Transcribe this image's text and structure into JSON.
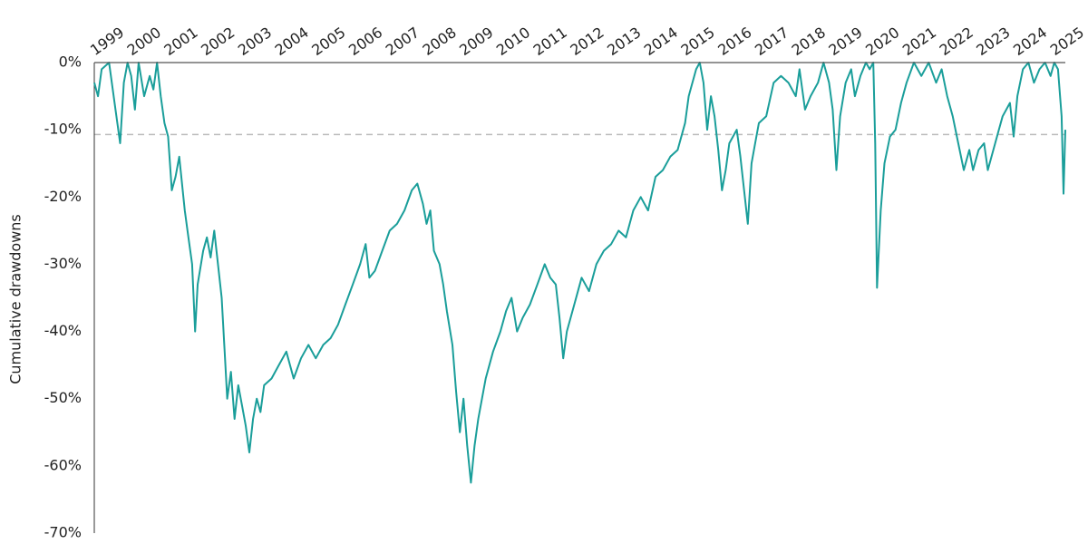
{
  "chart_data": {
    "type": "line",
    "ylabel": "Cumulative drawdowns",
    "xlim": [
      1999,
      2025.3
    ],
    "xticks": [
      1999,
      2000,
      2001,
      2002,
      2003,
      2004,
      2005,
      2006,
      2007,
      2008,
      2009,
      2010,
      2011,
      2012,
      2013,
      2014,
      2015,
      2016,
      2017,
      2018,
      2019,
      2020,
      2021,
      2022,
      2023,
      2024,
      2025
    ],
    "ylim": [
      -70,
      0
    ],
    "yticks": [
      {
        "value": 0,
        "label": "0%"
      },
      {
        "value": -10,
        "label": "-10%"
      },
      {
        "value": -20,
        "label": "-20%"
      },
      {
        "value": -30,
        "label": "-30%"
      },
      {
        "value": -40,
        "label": "-40%"
      },
      {
        "value": -50,
        "label": "-50%"
      },
      {
        "value": -60,
        "label": "-60%"
      },
      {
        "value": -70,
        "label": "-70%"
      }
    ],
    "reference_line": -10.7,
    "series": [
      {
        "color": "#1a9e9a",
        "x": [
          1999.0,
          1999.1,
          1999.2,
          1999.4,
          1999.6,
          1999.7,
          1999.8,
          1999.9,
          2000.0,
          2000.1,
          2000.2,
          2000.35,
          2000.5,
          2000.6,
          2000.7,
          2000.8,
          2000.9,
          2001.0,
          2001.1,
          2001.2,
          2001.3,
          2001.45,
          2001.55,
          2001.65,
          2001.73,
          2001.8,
          2001.95,
          2002.05,
          2002.15,
          2002.25,
          2002.35,
          2002.45,
          2002.55,
          2002.6,
          2002.7,
          2002.8,
          2002.9,
          2003.0,
          2003.1,
          2003.2,
          2003.3,
          2003.4,
          2003.5,
          2003.6,
          2003.8,
          2004.0,
          2004.2,
          2004.4,
          2004.6,
          2004.8,
          2005.0,
          2005.2,
          2005.4,
          2005.6,
          2005.8,
          2006.0,
          2006.2,
          2006.35,
          2006.45,
          2006.6,
          2006.8,
          2007.0,
          2007.2,
          2007.4,
          2007.6,
          2007.75,
          2007.9,
          2008.0,
          2008.1,
          2008.2,
          2008.35,
          2008.45,
          2008.55,
          2008.7,
          2008.8,
          2008.9,
          2009.0,
          2009.1,
          2009.2,
          2009.3,
          2009.4,
          2009.5,
          2009.6,
          2009.8,
          2010.0,
          2010.15,
          2010.3,
          2010.45,
          2010.6,
          2010.8,
          2011.0,
          2011.2,
          2011.35,
          2011.5,
          2011.6,
          2011.7,
          2011.8,
          2012.0,
          2012.2,
          2012.4,
          2012.6,
          2012.8,
          2013.0,
          2013.2,
          2013.4,
          2013.6,
          2013.8,
          2014.0,
          2014.2,
          2014.4,
          2014.6,
          2014.8,
          2015.0,
          2015.1,
          2015.3,
          2015.4,
          2015.5,
          2015.6,
          2015.7,
          2015.8,
          2015.9,
          2016.0,
          2016.1,
          2016.2,
          2016.4,
          2016.5,
          2016.6,
          2016.7,
          2016.8,
          2016.9,
          2017.0,
          2017.2,
          2017.4,
          2017.6,
          2017.8,
          2018.0,
          2018.1,
          2018.25,
          2018.4,
          2018.6,
          2018.75,
          2018.9,
          2019.0,
          2019.1,
          2019.2,
          2019.35,
          2019.5,
          2019.6,
          2019.75,
          2019.9,
          2020.0,
          2020.1,
          2020.15,
          2020.2,
          2020.3,
          2020.4,
          2020.55,
          2020.7,
          2020.85,
          2021.0,
          2021.2,
          2021.4,
          2021.6,
          2021.8,
          2021.95,
          2022.1,
          2022.25,
          2022.4,
          2022.55,
          2022.7,
          2022.8,
          2022.95,
          2023.1,
          2023.2,
          2023.35,
          2023.5,
          2023.6,
          2023.8,
          2023.9,
          2024.0,
          2024.15,
          2024.3,
          2024.45,
          2024.6,
          2024.75,
          2024.9,
          2025.0,
          2025.1,
          2025.2,
          2025.25,
          2025.3
        ],
        "values": [
          -3,
          -5,
          -1,
          0,
          -8,
          -12,
          -3,
          0,
          -2,
          -7,
          0,
          -5,
          -2,
          -4,
          0,
          -5,
          -9,
          -11,
          -19,
          -17,
          -14,
          -22,
          -26,
          -30,
          -40,
          -33,
          -28,
          -26,
          -29,
          -25,
          -30,
          -35,
          -45,
          -50,
          -46,
          -53,
          -48,
          -51,
          -54,
          -58,
          -53,
          -50,
          -52,
          -48,
          -47,
          -45,
          -43,
          -47,
          -44,
          -42,
          -44,
          -42,
          -41,
          -39,
          -36,
          -33,
          -30,
          -27,
          -32,
          -31,
          -28,
          -25,
          -24,
          -22,
          -19,
          -18,
          -21,
          -24,
          -22,
          -28,
          -30,
          -33,
          -37,
          -42,
          -49,
          -55,
          -50,
          -57,
          -62.5,
          -57,
          -53,
          -50,
          -47,
          -43,
          -40,
          -37,
          -35,
          -40,
          -38,
          -36,
          -33,
          -30,
          -32,
          -33,
          -38,
          -44,
          -40,
          -36,
          -32,
          -34,
          -30,
          -28,
          -27,
          -25,
          -26,
          -22,
          -20,
          -22,
          -17,
          -16,
          -14,
          -13,
          -9,
          -5,
          -1,
          0,
          -3,
          -10,
          -5,
          -8,
          -13,
          -19,
          -16,
          -12,
          -10,
          -14,
          -19,
          -24,
          -15,
          -12,
          -9,
          -8,
          -3,
          -2,
          -3,
          -5,
          -1,
          -7,
          -5,
          -3,
          0,
          -3,
          -7,
          -16,
          -8,
          -3,
          -1,
          -5,
          -2,
          0,
          -1,
          0,
          -12,
          -33.5,
          -22,
          -15,
          -11,
          -10,
          -6,
          -3,
          0,
          -2,
          0,
          -3,
          -1,
          -5,
          -8,
          -12,
          -16,
          -13,
          -16,
          -13,
          -12,
          -16,
          -13,
          -10,
          -8,
          -6,
          -11,
          -5,
          -1,
          0,
          -3,
          -1,
          0,
          -2,
          0,
          -1,
          -8,
          -19.5,
          -10
        ]
      }
    ]
  }
}
